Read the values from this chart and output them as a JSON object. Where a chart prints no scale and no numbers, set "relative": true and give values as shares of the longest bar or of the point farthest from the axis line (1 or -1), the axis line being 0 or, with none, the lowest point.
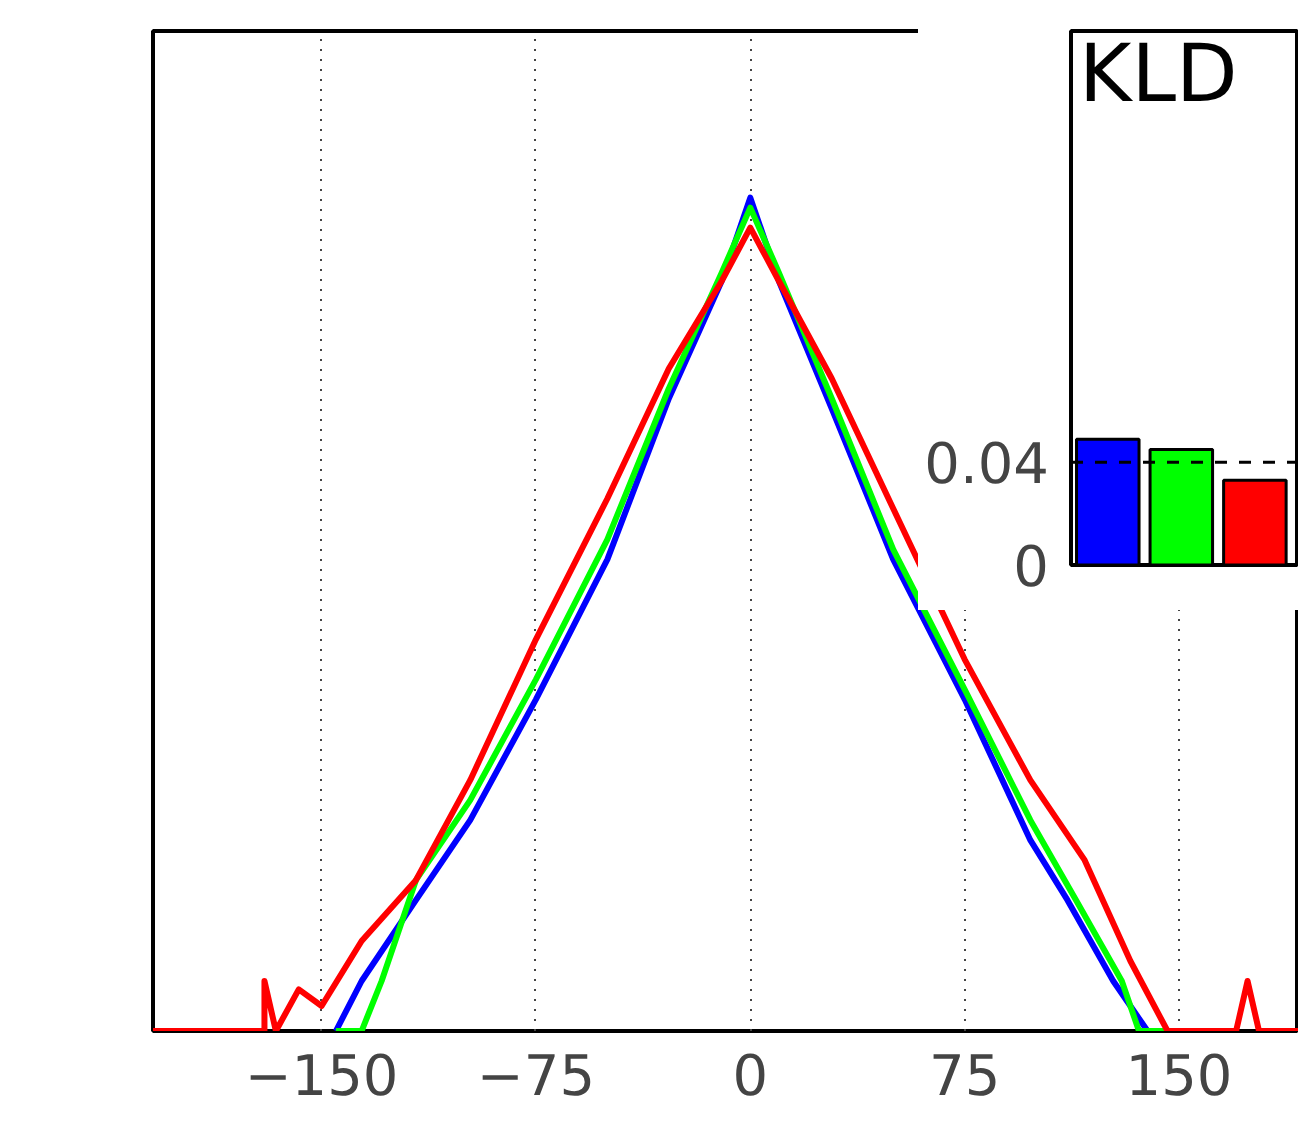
{
  "chart_data": [
    {
      "type": "line",
      "relative": true,
      "xlim": [
        -209,
        192
      ],
      "xticks": [
        {
          "value": -150,
          "label": "−150"
        },
        {
          "value": -75,
          "label": "−75"
        },
        0,
        75,
        150
      ],
      "grid": "x",
      "marker": "none",
      "line_style": "solid",
      "tick_labels": "x",
      "series": [
        {
          "color": "#0000ff",
          "x": [
            -145,
            -136,
            -117,
            -98,
            -75,
            -50,
            -28.5,
            -10,
            0,
            10,
            28.5,
            50,
            75,
            98,
            111,
            127,
            139,
            145
          ],
          "values": [
            0,
            0.06,
            0.157,
            0.253,
            0.398,
            0.566,
            0.759,
            0.9,
            1.0,
            0.9,
            0.747,
            0.566,
            0.398,
            0.229,
            0.157,
            0.06,
            0,
            0
          ]
        },
        {
          "color": "#00ff00",
          "x": [
            -145,
            -136,
            -129,
            -117,
            -98,
            -75,
            -50,
            -28.5,
            -10,
            0,
            10,
            28.5,
            50,
            75,
            98,
            114,
            130,
            136,
            145
          ],
          "values": [
            0,
            0,
            0.06,
            0.181,
            0.277,
            0.422,
            0.59,
            0.771,
            0.91,
            0.988,
            0.91,
            0.759,
            0.578,
            0.41,
            0.253,
            0.157,
            0.06,
            0,
            0
          ]
        },
        {
          "color": "#ff0000",
          "x": [
            -209,
            -170,
            -170,
            -166,
            -158,
            -150,
            -136,
            -117,
            -98,
            -75,
            -50,
            -28.5,
            -10,
            0,
            10,
            28.5,
            50,
            75,
            98,
            117,
            133,
            146,
            170,
            174,
            178,
            192
          ],
          "values": [
            0,
            0,
            0.06,
            0,
            0.05,
            0.03,
            0.108,
            0.181,
            0.301,
            0.47,
            0.639,
            0.795,
            0.9,
            0.964,
            0.9,
            0.783,
            0.627,
            0.446,
            0.301,
            0.205,
            0.084,
            0,
            0,
            0.06,
            0,
            0
          ]
        }
      ]
    },
    {
      "type": "bar",
      "title": "KLD",
      "categories": [
        null,
        null,
        null
      ],
      "values": [
        0.049,
        0.045,
        0.033
      ],
      "colors": [
        "#0000ff",
        "#00ff00",
        "#ff0000"
      ],
      "ylim": [
        0,
        0.208
      ],
      "yticks": [
        0,
        0.04
      ],
      "tick_labels": "y",
      "grid": false,
      "ref_lines": [
        {
          "axis": "y",
          "value": 0.04,
          "color": "#000000",
          "line_style": "dashed"
        }
      ]
    }
  ]
}
